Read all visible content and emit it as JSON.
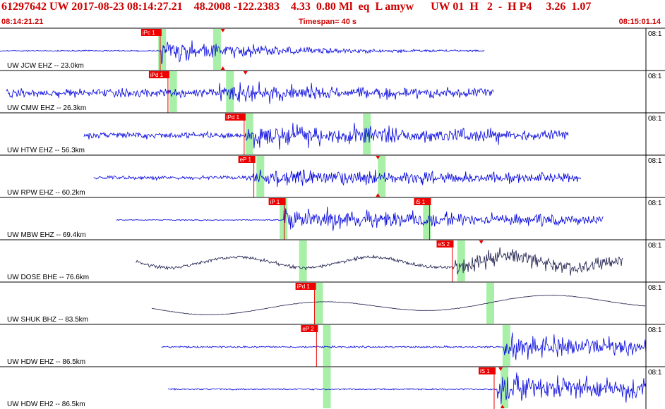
{
  "header": {
    "event_line": "61297642 UW 2017-08-23 08:14:27.21    48.2008 -122.2383    4.33  0.80 Ml  eq  L amyw      UW 01  H   2  -  H P4     3.26  1.07",
    "start_time": "08:14:21.21",
    "timespan": "Timespan=  40 s",
    "end_time": "08:15:01.14"
  },
  "colors": {
    "trace_blue": "#0000dd",
    "trace_dark": "#1a1a4a",
    "pick_red": "#ee0000",
    "window_green": "#a8f0a8",
    "label": "#000000",
    "header_red": "#cc0000"
  },
  "scale_tag": "08:1",
  "channels": [
    {
      "label": "UW JCW EHZ -- 23.0km",
      "color": "blue",
      "style": "event",
      "start": 0.0,
      "end": 0.75,
      "onset": 0.25,
      "amp": 0.55,
      "noise": 0.04,
      "decay": 0.18,
      "picks": [
        {
          "name": "iPc 1",
          "pos": 0.248,
          "line": true
        }
      ],
      "windows": [
        0.245,
        0.33
      ],
      "markers": [
        {
          "pos": 0.345,
          "side": "top"
        },
        {
          "pos": 0.345,
          "side": "bottom"
        }
      ]
    },
    {
      "label": "UW CMW EHZ -- 26.3km",
      "color": "blue",
      "style": "noisy",
      "start": 0.01,
      "end": 0.765,
      "onset": 0.34,
      "amp": 0.55,
      "noise": 0.28,
      "decay": 0.2,
      "picks": [
        {
          "name": "iPd 1",
          "pos": 0.26,
          "line": true
        }
      ],
      "windows": [
        0.262,
        0.35
      ],
      "markers": [
        {
          "pos": 0.38,
          "side": "top"
        }
      ]
    },
    {
      "label": "UW HTW EHZ -- 56.3km",
      "color": "blue",
      "style": "noisy",
      "start": 0.13,
      "end": 0.88,
      "onset": 0.38,
      "amp": 0.5,
      "noise": 0.22,
      "decay": 0.6,
      "picks": [
        {
          "name": "iPd 1",
          "pos": 0.378,
          "line": true
        }
      ],
      "windows": [
        0.38,
        0.562
      ],
      "markers": []
    },
    {
      "label": "UW RPW EHZ -- 60.2km",
      "color": "blue",
      "style": "noisy",
      "start": 0.145,
      "end": 0.9,
      "onset": 0.39,
      "amp": 0.4,
      "noise": 0.13,
      "decay": 0.6,
      "picks": [
        {
          "name": "eP 1",
          "pos": 0.393,
          "line": true
        }
      ],
      "windows": [
        0.397,
        0.585
      ],
      "markers": [
        {
          "pos": 0.585,
          "side": "top"
        },
        {
          "pos": 0.585,
          "side": "bottom"
        }
      ]
    },
    {
      "label": "UW MBW EHZ -- 69.4km",
      "color": "blue",
      "style": "event",
      "start": 0.18,
      "end": 0.935,
      "onset": 0.44,
      "amp": 0.55,
      "noise": 0.04,
      "decay": 0.5,
      "picks": [
        {
          "name": "iP 1",
          "pos": 0.44,
          "line": true
        },
        {
          "name": "iS 1",
          "pos": 0.665,
          "line": true
        }
      ],
      "windows": [
        0.433,
        0.655
      ],
      "markers": []
    },
    {
      "label": "UW DOSE BHE -- 76.6km",
      "color": "dark",
      "style": "longperiod",
      "start": 0.21,
      "end": 0.965,
      "onset": 0.705,
      "amp": 0.45,
      "noise": 0.12,
      "decay": 0.6,
      "picks": [
        {
          "name": "eS 2",
          "pos": 0.7,
          "line": true
        }
      ],
      "windows": [
        0.463,
        0.708
      ],
      "markers": [
        {
          "pos": 0.745,
          "side": "top"
        }
      ]
    },
    {
      "label": "UW SHUK BHZ -- 83.5km",
      "color": "dark",
      "style": "smooth",
      "start": 0.235,
      "end": 1.0,
      "onset": 0.49,
      "amp": 0.0,
      "noise": 0.02,
      "decay": 0.5,
      "picks": [
        {
          "name": "iPd 1",
          "pos": 0.487,
          "line": true
        }
      ],
      "windows": [
        0.488,
        0.753
      ],
      "markers": []
    },
    {
      "label": "UW HDW EHZ -- 86.5km",
      "color": "blue",
      "style": "event",
      "start": 0.25,
      "end": 1.0,
      "onset": 0.78,
      "amp": 0.5,
      "noise": 0.06,
      "decay": 0.6,
      "picks": [
        {
          "name": "eP 2",
          "pos": 0.49,
          "line": true
        }
      ],
      "windows": [
        0.5,
        0.778
      ],
      "markers": []
    },
    {
      "label": "UW HDW EH2 -- 86.5km",
      "color": "blue",
      "style": "event",
      "start": 0.26,
      "end": 1.0,
      "onset": 0.77,
      "amp": 0.7,
      "noise": 0.05,
      "decay": 0.6,
      "picks": [
        {
          "name": "iS 1",
          "pos": 0.765,
          "line": true
        }
      ],
      "windows": [
        0.5,
        0.775
      ],
      "markers": [
        {
          "pos": 0.775,
          "side": "top"
        },
        {
          "pos": 0.778,
          "side": "bottom"
        }
      ]
    }
  ]
}
